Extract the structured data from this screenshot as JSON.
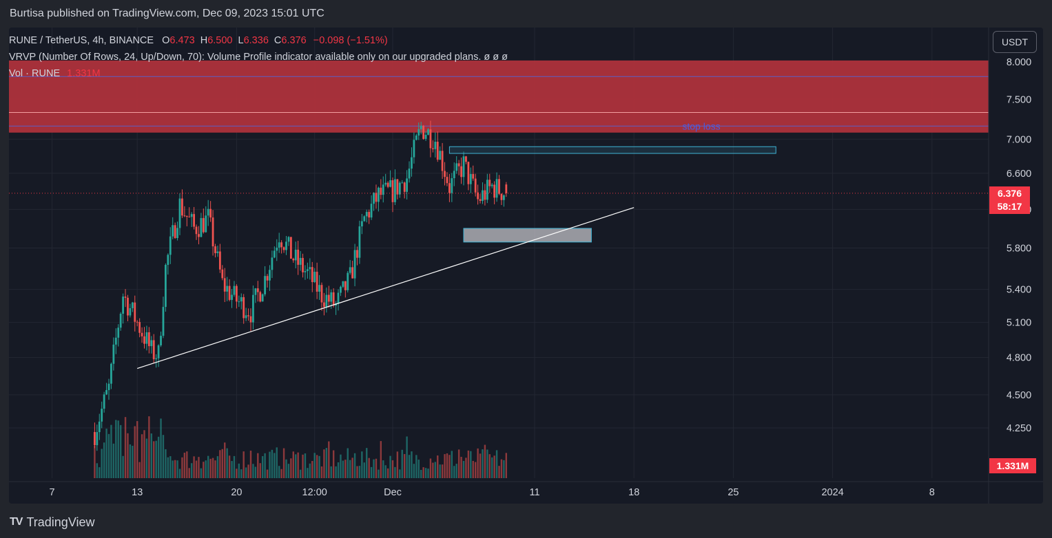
{
  "header": {
    "publisher_line": "Burtisa published on TradingView.com, Dec 09, 2023 15:01 UTC"
  },
  "legend": {
    "symbol_line": "RUNE / TetherUS, 4h, BINANCE",
    "o_label": "O",
    "o_value": "6.473",
    "h_label": "H",
    "h_value": "6.500",
    "l_label": "L",
    "l_value": "6.336",
    "c_label": "C",
    "c_value": "6.376",
    "change": "−0.098 (−1.51%)",
    "vrvp_line": "VRVP (Number Of Rows, 24, Up/Down, 70): Volume Profile indicator available only on our upgraded plans.  ø  ø  ø",
    "vol_label": "Vol · RUNE",
    "vol_value": "1.331M"
  },
  "currency_button": "USDT",
  "price_tag": {
    "value": "6.376",
    "countdown": "58:17"
  },
  "volume_tag": "1.331M",
  "brand": {
    "name": "TradingView"
  },
  "colors": {
    "up": "#26a69a",
    "down": "#ef5350",
    "background": "#161a25",
    "resistance_zone": "#b2323c",
    "last_price": "#f23645"
  },
  "chart_data": {
    "type": "candlestick",
    "symbol": "RUNE / TetherUS",
    "interval": "4h",
    "exchange": "BINANCE",
    "y_axis": {
      "scale": "log",
      "ticks": [
        "8.000",
        "7.500",
        "7.000",
        "6.600",
        "6.200",
        "5.800",
        "5.400",
        "5.100",
        "4.800",
        "4.500",
        "4.250"
      ],
      "range": [
        4.1,
        8.1
      ]
    },
    "x_axis": {
      "ticks": [
        "7",
        "13",
        "20",
        "12:00",
        "Dec",
        "11",
        "18",
        "25",
        "2024",
        "8"
      ],
      "tick_dates": [
        "2023-11-07",
        "2023-11-13",
        "2023-11-20",
        "2023-11-25T12:00",
        "2023-12-01",
        "2023-12-11",
        "2023-12-18",
        "2023-12-25",
        "2024-01-01",
        "2024-01-08"
      ]
    },
    "path": [
      {
        "t": "2023-11-10",
        "p": 4.22
      },
      {
        "t": "2023-11-11",
        "p": 4.55
      },
      {
        "t": "2023-11-12",
        "p": 5.35
      },
      {
        "t": "2023-11-13",
        "p": 5.1
      },
      {
        "t": "2023-11-14",
        "p": 4.85
      },
      {
        "t": "2023-11-14T12:00",
        "p": 4.82
      },
      {
        "t": "2023-11-15",
        "p": 5.6
      },
      {
        "t": "2023-11-16",
        "p": 6.25
      },
      {
        "t": "2023-11-17",
        "p": 6.0
      },
      {
        "t": "2023-11-18",
        "p": 6.1
      },
      {
        "t": "2023-11-19",
        "p": 5.45
      },
      {
        "t": "2023-11-20",
        "p": 5.3
      },
      {
        "t": "2023-11-21",
        "p": 5.2
      },
      {
        "t": "2023-11-22",
        "p": 5.5
      },
      {
        "t": "2023-11-23",
        "p": 5.95
      },
      {
        "t": "2023-11-24",
        "p": 5.7
      },
      {
        "t": "2023-11-25",
        "p": 5.55
      },
      {
        "t": "2023-11-26",
        "p": 5.35
      },
      {
        "t": "2023-11-27",
        "p": 5.25
      },
      {
        "t": "2023-11-28",
        "p": 5.5
      },
      {
        "t": "2023-11-29",
        "p": 6.1
      },
      {
        "t": "2023-11-30",
        "p": 6.35
      },
      {
        "t": "2023-12-01",
        "p": 6.4
      },
      {
        "t": "2023-12-02",
        "p": 6.55
      },
      {
        "t": "2023-12-03",
        "p": 7.15
      },
      {
        "t": "2023-12-04",
        "p": 7.0
      },
      {
        "t": "2023-12-05",
        "p": 6.45
      },
      {
        "t": "2023-12-06",
        "p": 6.7
      },
      {
        "t": "2023-12-07",
        "p": 6.3
      },
      {
        "t": "2023-12-08",
        "p": 6.45
      },
      {
        "t": "2023-12-09",
        "p": 6.376
      }
    ],
    "last_price": 6.376,
    "last_volume": "1.331M",
    "annotations": [
      {
        "type": "zone",
        "label": "",
        "from": 7.08,
        "to": 8.02,
        "color": "#b2323c"
      },
      {
        "type": "horizontal_line",
        "label": "stop loss",
        "price": 7.16
      },
      {
        "type": "box",
        "label": "",
        "start": "2023-12-05",
        "end": "2023-12-28",
        "from": 6.83,
        "to": 6.91
      },
      {
        "type": "box",
        "label": "",
        "start": "2023-12-06",
        "end": "2023-12-15",
        "from": 5.86,
        "to": 6.0
      },
      {
        "type": "trendline",
        "label": "",
        "start": {
          "t": "2023-11-13",
          "p": 4.71
        },
        "end": {
          "t": "2023-12-18",
          "p": 6.22
        }
      }
    ]
  }
}
